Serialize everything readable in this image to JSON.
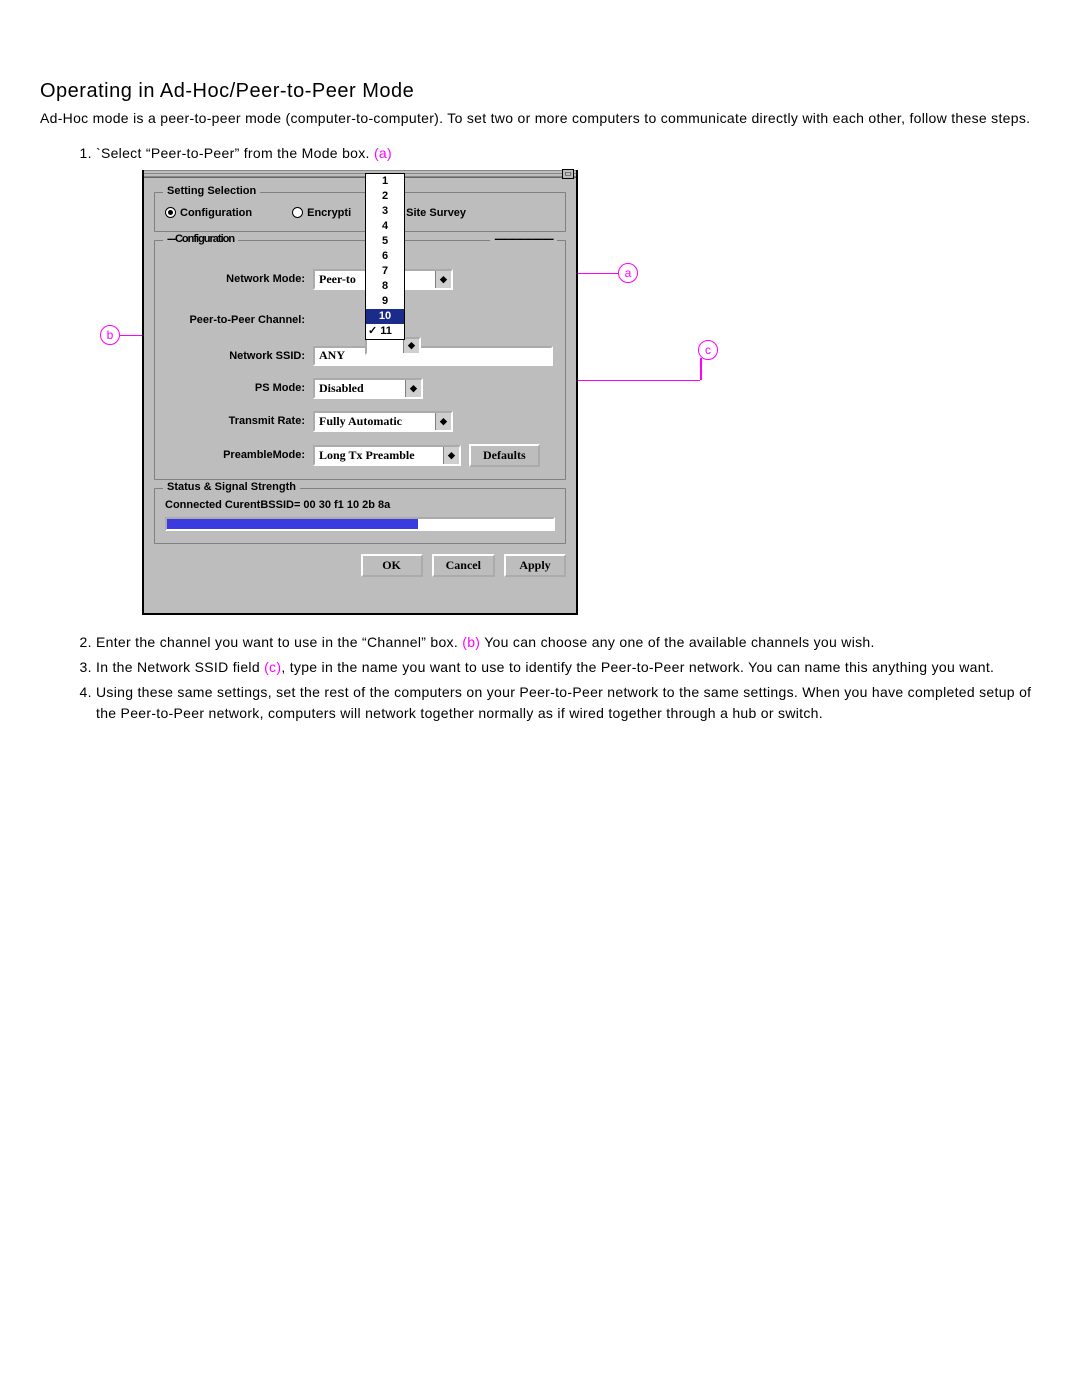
{
  "title": "Operating in Ad-Hoc/Peer-to-Peer Mode",
  "intro": "Ad-Hoc mode is a peer-to-peer mode (computer-to-computer). To set two or more computers to communicate directly with each other, follow these steps.",
  "step1_prefix": "`Select “Peer-to-Peer” from the Mode box. ",
  "step1_marker": "(a)",
  "step2_a": "Enter the channel you want to use in the “Channel” box. ",
  "step2_marker": "(b)",
  "step2_b": " You can choose any one of the available channels you wish.",
  "step3_a": "In the Network SSID field ",
  "step3_marker": "(c)",
  "step3_b": ", type in the name you want to use to identify the Peer-to-Peer network. You can name this anything you want.",
  "step4": "Using these same settings, set the rest of the computers on your Peer-to-Peer network to the same settings. When you have completed setup of the Peer-to-Peer network, computers will network together normally as if wired together through a hub or switch.",
  "callouts": {
    "a": "a",
    "b": "b",
    "c": "c"
  },
  "dialog": {
    "settingSelection": {
      "legend": "Setting Selection",
      "radios": {
        "configuration": "Configuration",
        "encryption": "Encrypti",
        "siteSurvey": "Site Survey"
      }
    },
    "configLegendLeft": "---Configuration",
    "configLegendRight": "----------------------",
    "labels": {
      "networkMode": "Network Mode:",
      "p2pChannel": "Peer-to-Peer Channel:",
      "ssid": "Network SSID:",
      "psMode": "PS Mode:",
      "txRate": "Transmit Rate:",
      "preamble": "PreambleMode:"
    },
    "values": {
      "networkMode": "Peer-to",
      "ssid": "ANY",
      "psMode": "Disabled",
      "txRate": "Fully Automatic",
      "preamble": "Long Tx Preamble",
      "defaults": "Defaults"
    },
    "channelOptions": [
      "1",
      "2",
      "3",
      "4",
      "5",
      "6",
      "7",
      "8",
      "9",
      "10",
      "11"
    ],
    "channelSelected": "10",
    "channelChecked": "11",
    "status": {
      "legend": "Status & Signal Strength",
      "text": "Connected  CurentBSSID= 00 30 f1 10 2b 8a",
      "progressPct": 65
    },
    "buttons": {
      "ok": "OK",
      "cancel": "Cancel",
      "apply": "Apply"
    }
  }
}
